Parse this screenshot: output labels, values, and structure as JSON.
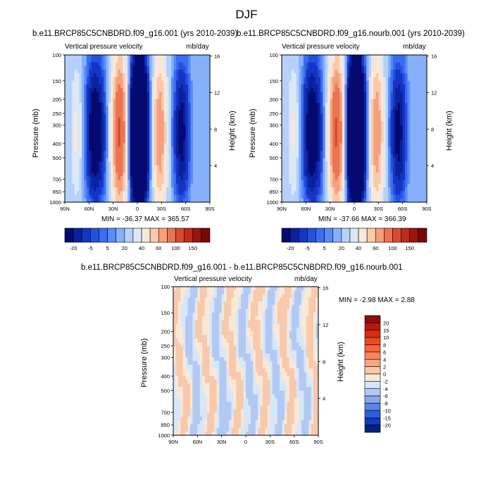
{
  "page": {
    "title": "DJF"
  },
  "chart_data": [
    {
      "type": "heatmap",
      "title": "b.e11.BRCP85C5CNBDRD.f09_g16.001 (yrs 2010-2039)",
      "subtitle_left": "Vertical pressure velocity",
      "subtitle_right": "mb/day",
      "xlabel": "",
      "ylabel": "Pressure (mb)",
      "y2label": "Height (km)",
      "x_ticks": [
        "90N",
        "60N",
        "30N",
        "0",
        "30S",
        "60S",
        "90S"
      ],
      "y_ticks": [
        "100",
        "150",
        "200",
        "250",
        "300",
        "400",
        "500",
        "700",
        "850",
        "1000"
      ],
      "y2_ticks": [
        "16",
        "12",
        "8",
        "4"
      ],
      "y_scale": "log",
      "ylim": [
        1000,
        100
      ],
      "stats": "MIN = -36.37  MAX = 365.57",
      "colorbar": {
        "labels": [
          "-20",
          "-5",
          "5",
          "20",
          "40",
          "60",
          "100",
          "150"
        ],
        "colors": [
          "#040a70",
          "#0a229e",
          "#1535c4",
          "#2551e0",
          "#3a6ef2",
          "#5a8af8",
          "#87b0fa",
          "#b6d1f8",
          "#dbe8f6",
          "#fbe7d6",
          "#f9c9aa",
          "#f4a07c",
          "#eb7452",
          "#d94a32",
          "#bf2a1d",
          "#9c1410",
          "#780808"
        ]
      }
    },
    {
      "type": "heatmap",
      "title": "b.e11.BRCP85C5CNBDRD.f09_g16.nourb.001 (yrs 2010-2039)",
      "subtitle_left": "Vertical pressure velocity",
      "subtitle_right": "mb/day",
      "xlabel": "",
      "ylabel": "Pressure (mb)",
      "y2label": "Height (km)",
      "x_ticks": [
        "90N",
        "60N",
        "30N",
        "0",
        "30S",
        "60S",
        "90S"
      ],
      "y_ticks": [
        "100",
        "150",
        "200",
        "250",
        "300",
        "400",
        "500",
        "700",
        "850",
        "1000"
      ],
      "y2_ticks": [
        "16",
        "12",
        "8",
        "4"
      ],
      "y_scale": "log",
      "ylim": [
        1000,
        100
      ],
      "stats": "MIN = -37.66  MAX = 366.39",
      "colorbar": {
        "labels": [
          "-20",
          "-5",
          "5",
          "20",
          "40",
          "60",
          "100",
          "150"
        ],
        "colors": [
          "#040a70",
          "#0a229e",
          "#1535c4",
          "#2551e0",
          "#3a6ef2",
          "#5a8af8",
          "#87b0fa",
          "#b6d1f8",
          "#dbe8f6",
          "#fbe7d6",
          "#f9c9aa",
          "#f4a07c",
          "#eb7452",
          "#d94a32",
          "#bf2a1d",
          "#9c1410",
          "#780808"
        ]
      }
    },
    {
      "type": "heatmap",
      "title": "b.e11.BRCP85C5CNBDRD.f09_g16.001 - b.e11.BRCP85C5CNBDRD.f09_g16.nourb.001",
      "subtitle_left": "Vertical pressure velocity",
      "subtitle_right": "mb/day",
      "xlabel": "",
      "ylabel": "Pressure (mb)",
      "y2label": "Height (km)",
      "x_ticks": [
        "90N",
        "60N",
        "30N",
        "0",
        "30S",
        "60S",
        "90S"
      ],
      "y_ticks": [
        "100",
        "150",
        "200",
        "250",
        "300",
        "400",
        "500",
        "700",
        "850",
        "1000"
      ],
      "y2_ticks": [
        "16",
        "12",
        "8",
        "4"
      ],
      "y_scale": "log",
      "ylim": [
        1000,
        100
      ],
      "stats": "MIN = -2.98  MAX =  2.88",
      "colorbar": {
        "labels": [
          "20",
          "15",
          "10",
          "8",
          "6",
          "4",
          "2",
          "0",
          "-2",
          "-4",
          "-6",
          "-8",
          "-10",
          "-15",
          "-20"
        ],
        "colors": [
          "#8c0d0d",
          "#b8190f",
          "#d92d12",
          "#ef4a1c",
          "#f7663a",
          "#f9855e",
          "#f8a785",
          "#f7c9ad",
          "#fae8d6",
          "#d8e7f7",
          "#b1c9f3",
          "#8aa8ee",
          "#5b82e6",
          "#2f5ddc",
          "#1438c0",
          "#08207e"
        ]
      }
    }
  ]
}
